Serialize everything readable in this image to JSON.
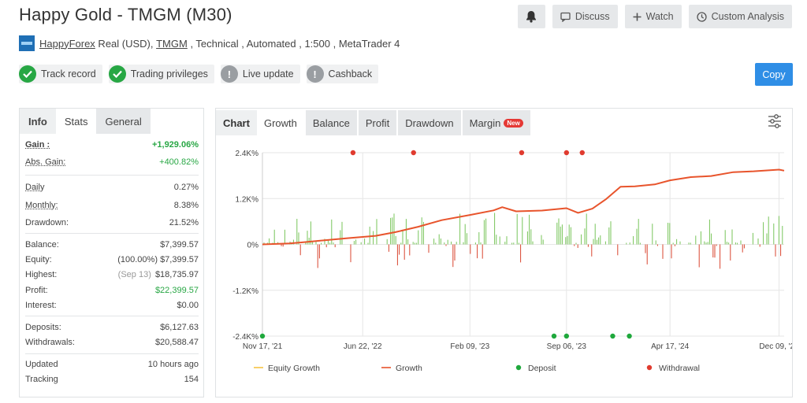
{
  "header": {
    "title": "Happy Gold - TMGM (M30)",
    "discuss_label": "Discuss",
    "watch_label": "Watch",
    "custom_analysis_label": "Custom Analysis"
  },
  "subline": {
    "owner": "HappyForex",
    "account_type": " Real (USD), ",
    "broker": "TMGM",
    "details": " , Technical , Automated , 1:500 , MetaTrader 4"
  },
  "badges": [
    {
      "label": "Track record",
      "status": "ok"
    },
    {
      "label": "Trading privileges",
      "status": "ok"
    },
    {
      "label": "Live update",
      "status": "na"
    },
    {
      "label": "Cashback",
      "status": "na"
    }
  ],
  "copy_label": "Copy",
  "stats_tabs": [
    "Info",
    "Stats",
    "General"
  ],
  "stats": {
    "gain_label": "Gain :",
    "gain": "+1,929.06%",
    "abs_gain_label": "Abs. Gain:",
    "abs_gain": "+400.82%",
    "daily_label": "Daily",
    "daily": "0.27%",
    "monthly_label": "Monthly:",
    "monthly": "8.38%",
    "drawdown_label": "Drawdown:",
    "drawdown": "21.52%",
    "balance_label": "Balance:",
    "balance": "$7,399.57",
    "equity_label": "Equity:",
    "equity_pct": "(100.00%)",
    "equity": "$7,399.57",
    "highest_label": "Highest:",
    "highest_date": "(Sep 13)",
    "highest": "$18,735.97",
    "profit_label": "Profit:",
    "profit": "$22,399.57",
    "interest_label": "Interest:",
    "interest": "$0.00",
    "deposits_label": "Deposits:",
    "deposits": "$6,127.63",
    "withdrawals_label": "Withdrawals:",
    "withdrawals": "$20,588.47",
    "updated_label": "Updated",
    "updated": "10 hours ago",
    "tracking_label": "Tracking",
    "tracking": "154"
  },
  "chart_tabs": {
    "chart": "Chart",
    "growth": "Growth",
    "balance": "Balance",
    "profit": "Profit",
    "drawdown": "Drawdown",
    "margin": "Margin",
    "new_badge": "New"
  },
  "colors": {
    "growth": "#e8542c",
    "deposit": "#1fa83c",
    "withdrawal": "#e03b2f",
    "equity": "#f6c343",
    "positive_bar": "#78c45a",
    "negative_bar": "#d9452f",
    "accent": "#2f8ee6"
  },
  "chart_data": {
    "type": "line",
    "y_tick_labels": [
      "2.4K%",
      "1.2K%",
      "0%",
      "-1.2K%",
      "-2.4K%"
    ],
    "y_ticks": [
      2400,
      1200,
      0,
      -1200,
      -2400
    ],
    "ylim": [
      -2400,
      2400
    ],
    "x_tick_labels": [
      "Nov 17, '21",
      "Jun 22, '22",
      "Feb 09, '23",
      "Sep 06, '23",
      "Apr 17, '24",
      "Dec 09, '24"
    ],
    "x_ticks": [
      "2021-11-17",
      "2022-06-22",
      "2023-02-09",
      "2023-09-06",
      "2024-04-17",
      "2024-12-09"
    ],
    "xlim": [
      "2021-11-17",
      "2024-12-20"
    ],
    "grid": true,
    "legend": [
      "Equity Growth",
      "Growth",
      "Deposit",
      "Withdrawal"
    ],
    "legend_position": "bottom",
    "series": [
      {
        "name": "Growth",
        "points": [
          [
            "2021-11-17",
            0
          ],
          [
            "2022-01-15",
            40
          ],
          [
            "2022-03-20",
            100
          ],
          [
            "2022-05-20",
            160
          ],
          [
            "2022-07-20",
            230
          ],
          [
            "2022-09-01",
            310
          ],
          [
            "2022-10-20",
            460
          ],
          [
            "2022-12-10",
            640
          ],
          [
            "2023-02-09",
            780
          ],
          [
            "2023-04-01",
            900
          ],
          [
            "2023-04-20",
            980
          ],
          [
            "2023-05-20",
            860
          ],
          [
            "2023-07-15",
            880
          ],
          [
            "2023-09-06",
            940
          ],
          [
            "2023-10-01",
            820
          ],
          [
            "2023-11-01",
            930
          ],
          [
            "2023-12-01",
            1200
          ],
          [
            "2024-01-01",
            1500
          ],
          [
            "2024-02-01",
            1520
          ],
          [
            "2024-03-15",
            1560
          ],
          [
            "2024-04-17",
            1680
          ],
          [
            "2024-06-01",
            1760
          ],
          [
            "2024-07-15",
            1800
          ],
          [
            "2024-09-01",
            1880
          ],
          [
            "2024-10-15",
            1920
          ],
          [
            "2024-12-09",
            1950
          ],
          [
            "2024-12-20",
            1930
          ]
        ]
      }
    ],
    "withdrawals": [
      {
        "date": "2022-06-01"
      },
      {
        "date": "2022-10-10"
      },
      {
        "date": "2023-06-01"
      },
      {
        "date": "2023-09-06"
      },
      {
        "date": "2023-10-10"
      }
    ],
    "withdrawal_level": 2400,
    "deposits": [
      {
        "date": "2021-11-17"
      },
      {
        "date": "2023-08-10"
      },
      {
        "date": "2023-09-06"
      },
      {
        "date": "2023-12-15"
      },
      {
        "date": "2024-01-20"
      }
    ],
    "deposit_level": -2400
  }
}
